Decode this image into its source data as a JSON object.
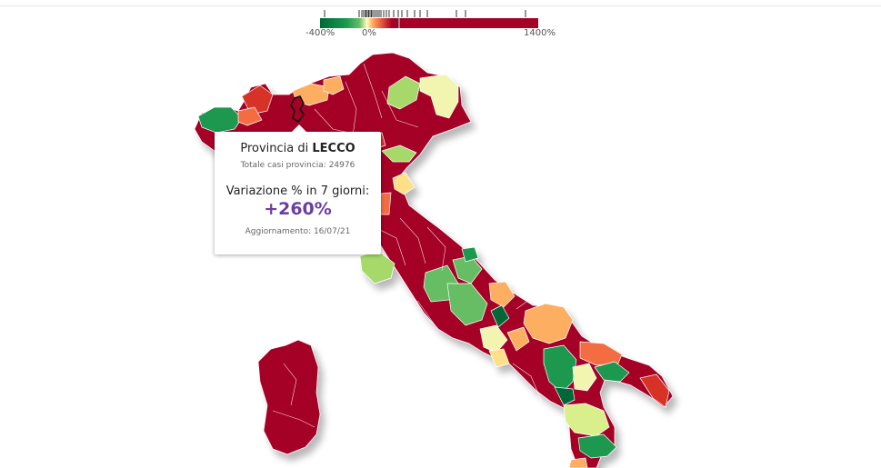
{
  "legend": {
    "min_label": "-400%",
    "zero_label": "0%",
    "max_label": "1400%",
    "colors": {
      "low": "#006837",
      "mid_low": "#66bd63",
      "zero_light": "#ffffbf",
      "mid_high": "#f46d43",
      "high": "#a50026"
    }
  },
  "tooltip": {
    "title_prefix": "Provincia di ",
    "province": "LECCO",
    "total_cases_label": "Totale casi provincia: ",
    "total_cases": "24976",
    "variation_label": "Variazione % in 7 giorni:",
    "variation_value": "+260%",
    "update_label": "Aggiornamento: ",
    "update_date": "16/07/21",
    "value_color": "#6b3fa0"
  },
  "map": {
    "colors": {
      "dark_red": "#a50026",
      "red": "#d73027",
      "orange_red": "#f46d43",
      "orange": "#fdae61",
      "light_orange": "#fee08b",
      "pale_yellow": "#f1f5b0",
      "light_green": "#d9ef8b",
      "mid_green": "#66bd63",
      "green": "#1a9850",
      "dark_green": "#006837"
    }
  }
}
